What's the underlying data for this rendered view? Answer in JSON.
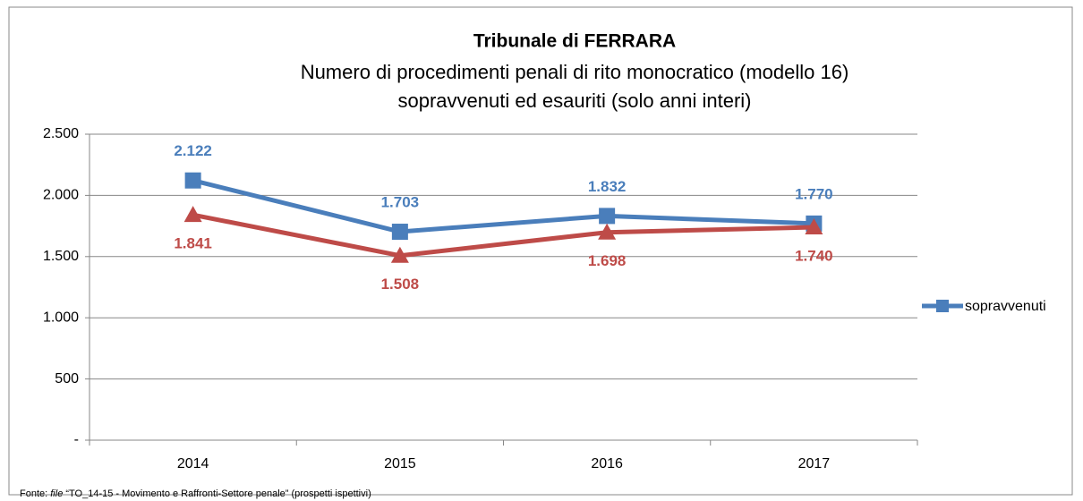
{
  "chart_data": {
    "type": "line",
    "title": "Tribunale di FERRARA",
    "subtitle": [
      "Numero di procedimenti penali di rito monocratico (modello 16)",
      "sopravvenuti ed esauriti (solo anni interi)"
    ],
    "categories": [
      "2014",
      "2015",
      "2016",
      "2017"
    ],
    "series": [
      {
        "name": "sopravvenuti",
        "color": "#4a7ebb",
        "marker": "square",
        "values": [
          2122,
          1703,
          1832,
          1770
        ],
        "value_labels": [
          "2.122",
          "1.703",
          "1.832",
          "1.770"
        ],
        "label_position": "above"
      },
      {
        "color": "#be4b48",
        "marker": "triangle",
        "values": [
          1841,
          1508,
          1698,
          1740
        ],
        "value_labels": [
          "1.841",
          "1.508",
          "1.698",
          "1.740"
        ],
        "label_position": "below"
      }
    ],
    "ylim": [
      0,
      2500
    ],
    "yticks": [
      {
        "value": 0,
        "label": "-"
      },
      500,
      {
        "value": 1000,
        "label": "1.000"
      },
      {
        "value": 1500,
        "label": "1.500"
      },
      {
        "value": 2000,
        "label": "2.000"
      },
      {
        "value": 2500,
        "label": "2.500"
      }
    ],
    "grid": true,
    "legend": "right"
  },
  "source": {
    "prefix": "Fonte:",
    "file": "file",
    "text": "“TO_14-15 - Movimento e Raffronti-Settore penale” (prospetti ispettivi)"
  }
}
